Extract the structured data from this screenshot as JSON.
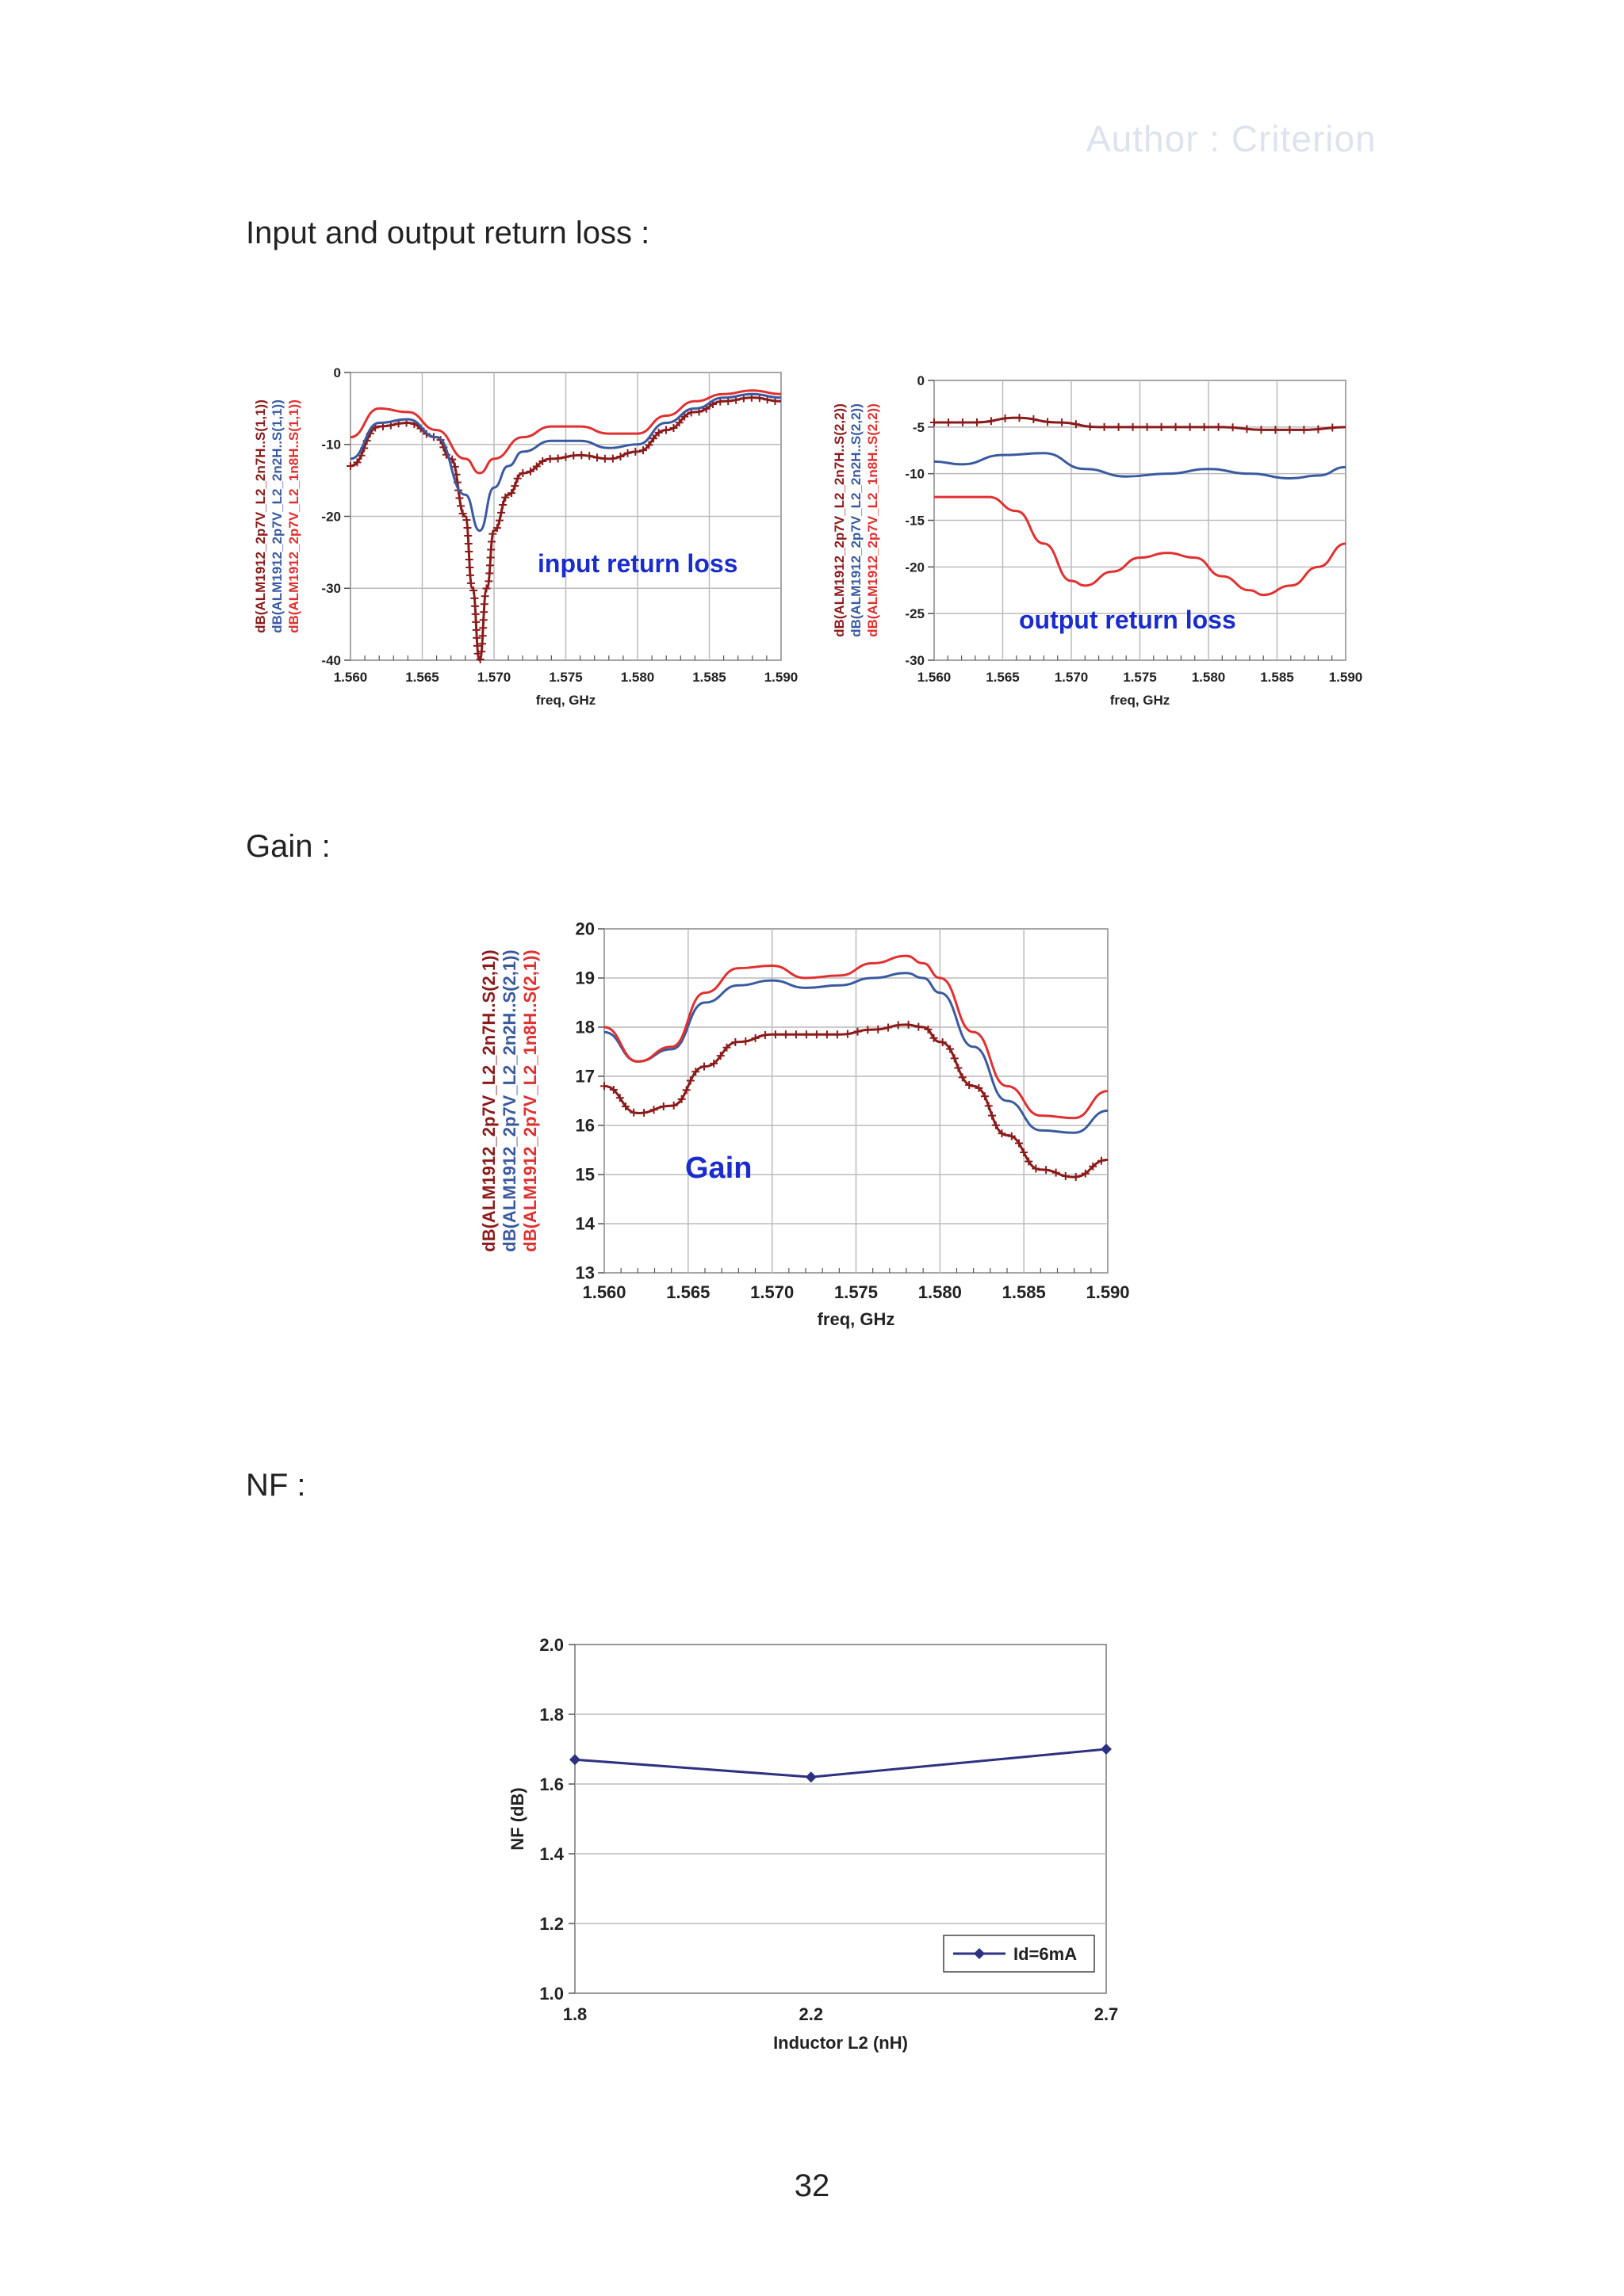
{
  "header": {
    "watermark": "Author : Criterion"
  },
  "sections": {
    "return_loss": "Input and output return loss :",
    "gain": "Gain :",
    "nf": "NF :"
  },
  "page_number": "32",
  "colors": {
    "dark_red": "#8b1a1a",
    "blue": "#3a5aa0",
    "red": "#e03030",
    "label_blue": "#1a2ccc",
    "nf_line": "#2e3182"
  },
  "chart_data": [
    {
      "id": "input_return_loss",
      "type": "line",
      "annotation": "input return loss",
      "xlabel": "freq, GHz",
      "x_ticks": [
        "1.560",
        "1.565",
        "1.570",
        "1.575",
        "1.580",
        "1.585",
        "1.590"
      ],
      "y_ticks": [
        "0",
        "-10",
        "-20",
        "-30",
        "-40"
      ],
      "xlim": [
        1.56,
        1.59
      ],
      "ylim": [
        -40,
        0
      ],
      "series": [
        {
          "name": "dB(ALM1912_2p7V_L2_2n7H..S(1,1))",
          "color": "#8b1a1a",
          "markers": true,
          "x": [
            1.56,
            1.562,
            1.564,
            1.566,
            1.567,
            1.568,
            1.5685,
            1.569,
            1.5695,
            1.57,
            1.571,
            1.572,
            1.574,
            1.576,
            1.578,
            1.58,
            1.582,
            1.584,
            1.586,
            1.588,
            1.59
          ],
          "y": [
            -13,
            -7.5,
            -7,
            -9,
            -12,
            -20,
            -30,
            -40,
            -30,
            -22,
            -17,
            -14,
            -12,
            -11.5,
            -12,
            -11,
            -8,
            -5.5,
            -4,
            -3.5,
            -4
          ]
        },
        {
          "name": "dB(ALM1912_2p7V_L2_2n2H..S(1,1))",
          "color": "#3a5aa0",
          "markers": false,
          "x": [
            1.56,
            1.562,
            1.564,
            1.566,
            1.568,
            1.569,
            1.57,
            1.571,
            1.572,
            1.574,
            1.576,
            1.578,
            1.58,
            1.582,
            1.584,
            1.586,
            1.588,
            1.59
          ],
          "y": [
            -12,
            -7,
            -6.5,
            -9,
            -17,
            -22,
            -16,
            -13,
            -11,
            -9.5,
            -9.5,
            -10.5,
            -10,
            -7,
            -5,
            -3.5,
            -3,
            -3.5
          ]
        },
        {
          "name": "dB(ALM1912_2p7V_L2_1n8H..S(1,1))",
          "color": "#e03030",
          "markers": false,
          "x": [
            1.56,
            1.562,
            1.564,
            1.566,
            1.568,
            1.569,
            1.57,
            1.572,
            1.574,
            1.576,
            1.578,
            1.58,
            1.582,
            1.584,
            1.586,
            1.588,
            1.59
          ],
          "y": [
            -9,
            -5,
            -5.5,
            -8,
            -12,
            -14,
            -12,
            -9,
            -7.5,
            -7.5,
            -8.5,
            -8.5,
            -6,
            -4,
            -3,
            -2.5,
            -3
          ]
        }
      ]
    },
    {
      "id": "output_return_loss",
      "type": "line",
      "annotation": "output return loss",
      "xlabel": "freq, GHz",
      "x_ticks": [
        "1.560",
        "1.565",
        "1.570",
        "1.575",
        "1.580",
        "1.585",
        "1.590"
      ],
      "y_ticks": [
        "0",
        "-5",
        "-10",
        "-15",
        "-20",
        "-25",
        "-30"
      ],
      "xlim": [
        1.56,
        1.59
      ],
      "ylim": [
        -30,
        0
      ],
      "series": [
        {
          "name": "dB(ALM1912_2p7V_L2_2n7H..S(2,2))",
          "color": "#8b1a1a",
          "markers": true,
          "x": [
            1.56,
            1.563,
            1.566,
            1.569,
            1.572,
            1.575,
            1.578,
            1.581,
            1.584,
            1.587,
            1.59
          ],
          "y": [
            -4.5,
            -4.5,
            -4,
            -4.5,
            -5,
            -5,
            -5,
            -5,
            -5.3,
            -5.3,
            -5
          ]
        },
        {
          "name": "dB(ALM1912_2p7V_L2_2n2H..S(2,2))",
          "color": "#3a5aa0",
          "markers": false,
          "x": [
            1.56,
            1.562,
            1.565,
            1.568,
            1.571,
            1.574,
            1.577,
            1.58,
            1.583,
            1.586,
            1.588,
            1.59
          ],
          "y": [
            -8.7,
            -9,
            -8,
            -7.8,
            -9.5,
            -10.3,
            -10,
            -9.5,
            -10,
            -10.5,
            -10.2,
            -9.3
          ]
        },
        {
          "name": "dB(ALM1912_2p7V_L2_1n8H..S(2,2))",
          "color": "#e03030",
          "markers": false,
          "x": [
            1.56,
            1.562,
            1.564,
            1.566,
            1.568,
            1.57,
            1.571,
            1.573,
            1.575,
            1.577,
            1.579,
            1.581,
            1.583,
            1.584,
            1.586,
            1.588,
            1.59
          ],
          "y": [
            -12.5,
            -12.5,
            -12.5,
            -14,
            -17.5,
            -21.5,
            -22,
            -20.5,
            -19,
            -18.5,
            -19,
            -21,
            -22.5,
            -23,
            -22,
            -20,
            -17.5
          ]
        }
      ]
    },
    {
      "id": "gain",
      "type": "line",
      "annotation": "Gain",
      "xlabel": "freq, GHz",
      "x_ticks": [
        "1.560",
        "1.565",
        "1.570",
        "1.575",
        "1.580",
        "1.585",
        "1.590"
      ],
      "y_ticks": [
        "20",
        "19",
        "18",
        "17",
        "16",
        "15",
        "14",
        "13"
      ],
      "xlim": [
        1.56,
        1.59
      ],
      "ylim": [
        13,
        20
      ],
      "series": [
        {
          "name": "dB(ALM1912_2p7V_L2_2n7H..S(2,1))",
          "color": "#8b1a1a",
          "markers": true,
          "x": [
            1.56,
            1.562,
            1.564,
            1.566,
            1.568,
            1.57,
            1.572,
            1.574,
            1.576,
            1.578,
            1.579,
            1.58,
            1.582,
            1.584,
            1.586,
            1.588,
            1.59
          ],
          "y": [
            16.8,
            16.25,
            16.4,
            17.2,
            17.7,
            17.85,
            17.85,
            17.85,
            17.95,
            18.05,
            18.0,
            17.7,
            16.8,
            15.8,
            15.1,
            14.95,
            15.3
          ]
        },
        {
          "name": "dB(ALM1912_2p7V_L2_2n2H..S(2,1))",
          "color": "#3a5aa0",
          "markers": false,
          "x": [
            1.56,
            1.562,
            1.564,
            1.566,
            1.568,
            1.57,
            1.572,
            1.574,
            1.576,
            1.578,
            1.579,
            1.58,
            1.582,
            1.584,
            1.586,
            1.588,
            1.59
          ],
          "y": [
            17.9,
            17.3,
            17.55,
            18.5,
            18.85,
            18.95,
            18.8,
            18.85,
            19.0,
            19.1,
            19.0,
            18.7,
            17.6,
            16.5,
            15.9,
            15.85,
            16.3
          ]
        },
        {
          "name": "dB(ALM1912_2p7V_L2_1n8H..S(2,1))",
          "color": "#e03030",
          "markers": false,
          "x": [
            1.56,
            1.562,
            1.564,
            1.566,
            1.568,
            1.57,
            1.572,
            1.574,
            1.576,
            1.578,
            1.579,
            1.58,
            1.582,
            1.584,
            1.586,
            1.588,
            1.59
          ],
          "y": [
            18.0,
            17.3,
            17.6,
            18.7,
            19.2,
            19.25,
            19.0,
            19.05,
            19.3,
            19.45,
            19.3,
            19.0,
            17.9,
            16.8,
            16.2,
            16.15,
            16.7
          ]
        }
      ]
    },
    {
      "id": "nf",
      "type": "line",
      "xlabel": "Inductor L2 (nH)",
      "ylabel": "NF (dB)",
      "categories": [
        "1.8",
        "2.2",
        "2.7"
      ],
      "y_ticks": [
        "2.0",
        "1.8",
        "1.6",
        "1.4",
        "1.2",
        "1.0"
      ],
      "ylim": [
        1.0,
        2.0
      ],
      "legend_position": "bottom-right",
      "series": [
        {
          "name": "Id=6mA",
          "color": "#2e3182",
          "values": [
            1.67,
            1.62,
            1.7
          ]
        }
      ]
    }
  ]
}
